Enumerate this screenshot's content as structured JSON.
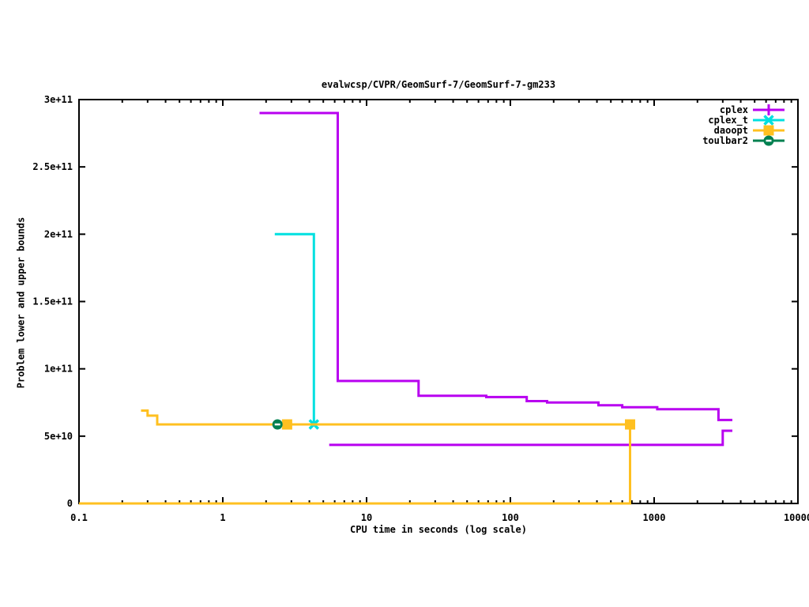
{
  "window": {
    "background": "#ffffff",
    "frame_color": "#000000"
  },
  "chart_data": {
    "type": "line",
    "title": "evalwcsp/CVPR/GeomSurf-7/GeomSurf-7-gm233",
    "xlabel": "CPU time in seconds (log scale)",
    "ylabel": "Problem lower and upper bounds",
    "x_scale": "log",
    "xlim": [
      0.1,
      10000
    ],
    "ylim": [
      0,
      300000000000.0
    ],
    "grid": false,
    "legend_position": "top-right-inside",
    "x_ticks": [
      {
        "v": 0.1,
        "label": "0.1"
      },
      {
        "v": 1,
        "label": "1"
      },
      {
        "v": 10,
        "label": "10"
      },
      {
        "v": 100,
        "label": "100"
      },
      {
        "v": 1000,
        "label": "1000"
      },
      {
        "v": 10000,
        "label": "10000"
      }
    ],
    "y_ticks": [
      {
        "v": 0,
        "label": "0"
      },
      {
        "v": 50000000000.0,
        "label": "5e+10"
      },
      {
        "v": 100000000000.0,
        "label": "1e+11"
      },
      {
        "v": 150000000000.0,
        "label": "1.5e+11"
      },
      {
        "v": 200000000000.0,
        "label": "2e+11"
      },
      {
        "v": 250000000000.0,
        "label": "2.5e+11"
      },
      {
        "v": 300000000000.0,
        "label": "3e+11"
      }
    ],
    "series": [
      {
        "name": "cplex",
        "color": "#b800f0",
        "marker": "plus",
        "lines": [
          {
            "label": "upper_bound",
            "points": [
              [
                1.8,
                290000000000.0
              ],
              [
                6.3,
                290000000000.0
              ],
              [
                6.3,
                91000000000.0
              ],
              [
                23,
                91000000000.0
              ],
              [
                23,
                80000000000.0
              ],
              [
                68,
                80000000000.0
              ],
              [
                68,
                79000000000.0
              ],
              [
                130,
                79000000000.0
              ],
              [
                130,
                76000000000.0
              ],
              [
                180,
                76000000000.0
              ],
              [
                180,
                75000000000.0
              ],
              [
                410,
                75000000000.0
              ],
              [
                410,
                73000000000.0
              ],
              [
                600,
                73000000000.0
              ],
              [
                600,
                71500000000.0
              ],
              [
                1050,
                71500000000.0
              ],
              [
                1050,
                70000000000.0
              ],
              [
                2800,
                70000000000.0
              ],
              [
                2800,
                62000000000.0
              ],
              [
                3500,
                62000000000.0
              ]
            ]
          },
          {
            "label": "lower_bound",
            "points": [
              [
                5.5,
                43500000000.0
              ],
              [
                3000,
                43500000000.0
              ],
              [
                3000,
                54000000000.0
              ],
              [
                3500,
                54000000000.0
              ]
            ]
          }
        ],
        "marker_points": []
      },
      {
        "name": "cplex_t",
        "color": "#00e0e0",
        "marker": "cross",
        "lines": [
          {
            "label": "upper_bound",
            "points": [
              [
                2.3,
                200000000000.0
              ],
              [
                4.3,
                200000000000.0
              ],
              [
                4.3,
                58700000000.0
              ]
            ]
          }
        ],
        "marker_points": [
          [
            4.3,
            58700000000.0
          ]
        ]
      },
      {
        "name": "daoopt",
        "color": "#ffc020",
        "marker": "square",
        "lines": [
          {
            "label": "upper_bound",
            "points": [
              [
                0.27,
                69000000000.0
              ],
              [
                0.3,
                69000000000.0
              ],
              [
                0.3,
                65200000000.0
              ],
              [
                0.35,
                65200000000.0
              ],
              [
                0.35,
                58700000000.0
              ],
              [
                680,
                58700000000.0
              ]
            ]
          },
          {
            "label": "lower_bound",
            "points": [
              [
                0.1,
                0
              ],
              [
                680,
                0
              ],
              [
                680,
                58700000000.0
              ]
            ]
          }
        ],
        "marker_points": [
          [
            2.8,
            58700000000.0
          ],
          [
            680,
            58700000000.0
          ]
        ]
      },
      {
        "name": "toulbar2",
        "color": "#008050",
        "marker": "circle-dash",
        "lines": [],
        "marker_points": [
          [
            2.4,
            58700000000.0
          ]
        ]
      }
    ]
  }
}
